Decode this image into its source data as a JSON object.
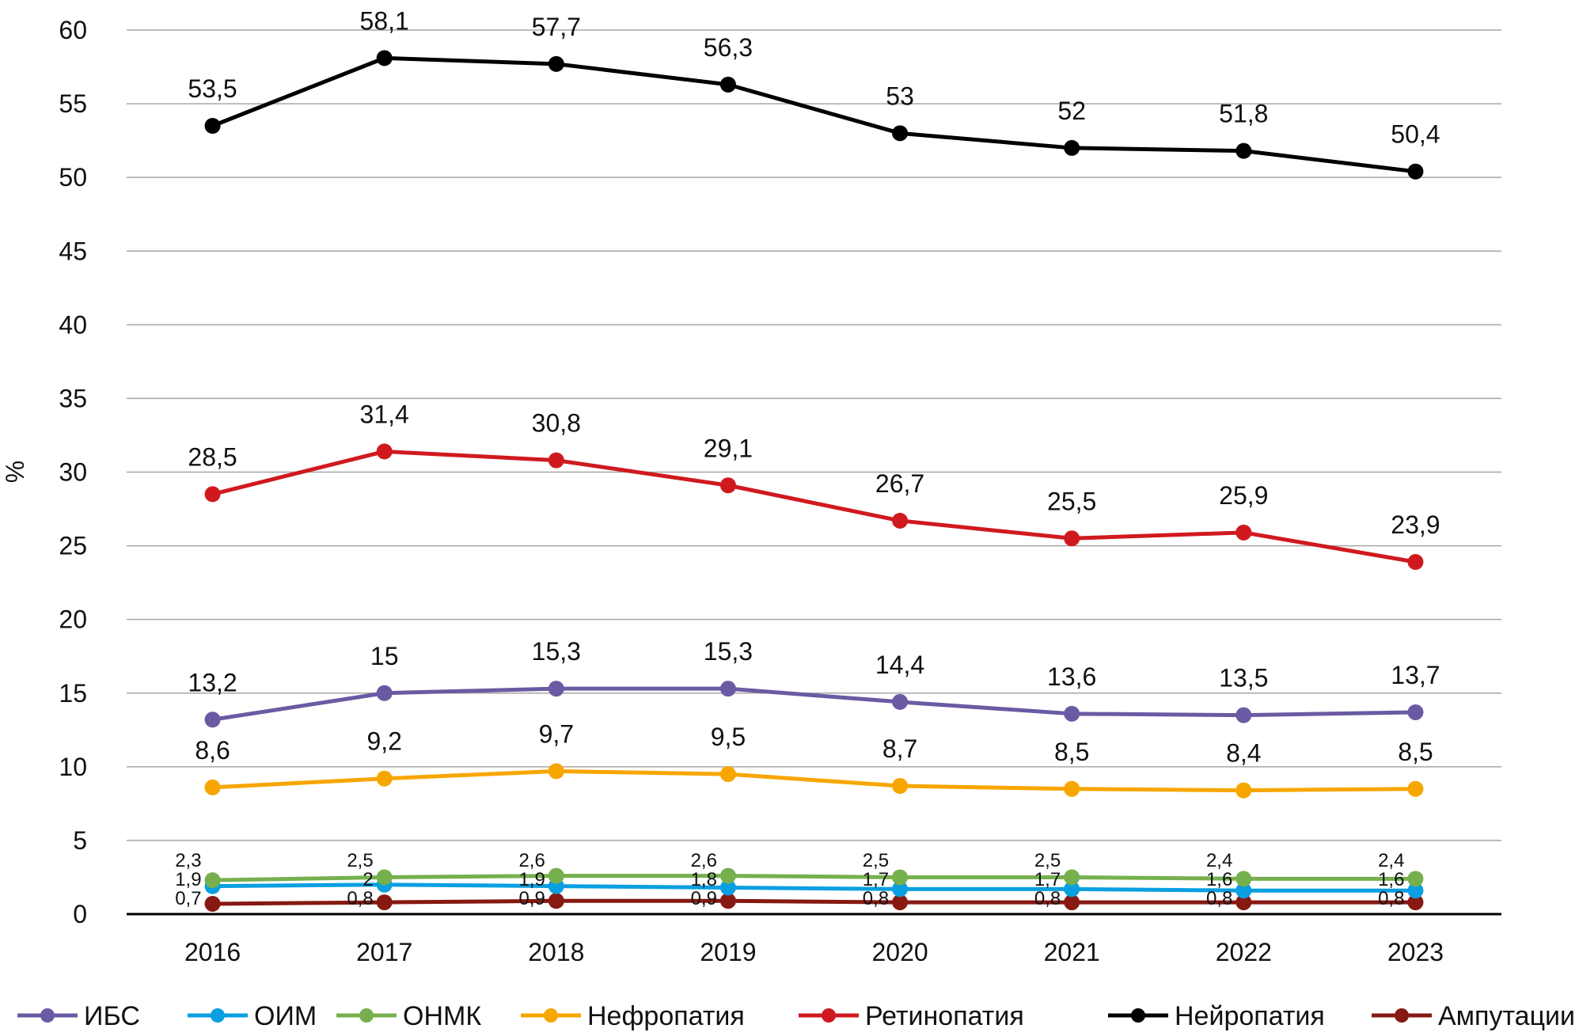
{
  "chart_data": {
    "type": "line",
    "title": "",
    "xlabel": "",
    "ylabel": "%",
    "ylim": [
      0,
      60
    ],
    "yticks": [
      0,
      5,
      10,
      15,
      20,
      25,
      30,
      35,
      40,
      45,
      50,
      55,
      60
    ],
    "grid": "horizontal",
    "legend_position": "bottom",
    "categories": [
      "2016",
      "2017",
      "2018",
      "2019",
      "2020",
      "2021",
      "2022",
      "2023"
    ],
    "series": [
      {
        "name": "ИБС",
        "color": "#6b5aa3",
        "values": [
          13.2,
          15,
          15.3,
          15.3,
          14.4,
          13.6,
          13.5,
          13.7
        ],
        "labels": [
          "13,2",
          "15",
          "15,3",
          "15,3",
          "14,4",
          "13,6",
          "13,5",
          "13,7"
        ]
      },
      {
        "name": "ОИМ",
        "color": "#0a9fe0",
        "values": [
          1.9,
          2,
          1.9,
          1.8,
          1.7,
          1.7,
          1.6,
          1.6
        ],
        "labels": [
          "1,9",
          "2",
          "1,9",
          "1,8",
          "1,7",
          "1,7",
          "1,6",
          "1,6"
        ]
      },
      {
        "name": "ОНМК",
        "color": "#76b04e",
        "values": [
          2.3,
          2.5,
          2.6,
          2.6,
          2.5,
          2.5,
          2.4,
          2.4
        ],
        "labels": [
          "2,3",
          "2,5",
          "2,6",
          "2,6",
          "2,5",
          "2,5",
          "2,4",
          "2,4"
        ]
      },
      {
        "name": "Нефропатия",
        "color": "#f7a600",
        "values": [
          8.6,
          9.2,
          9.7,
          9.5,
          8.7,
          8.5,
          8.4,
          8.5
        ],
        "labels": [
          "8,6",
          "9,2",
          "9,7",
          "9,5",
          "8,7",
          "8,5",
          "8,4",
          "8,5"
        ]
      },
      {
        "name": "Ретинопатия",
        "color": "#d0191e",
        "values": [
          28.5,
          31.4,
          30.8,
          29.1,
          26.7,
          25.5,
          25.9,
          23.9
        ],
        "labels": [
          "28,5",
          "31,4",
          "30,8",
          "29,1",
          "26,7",
          "25,5",
          "25,9",
          "23,9"
        ]
      },
      {
        "name": "Нейропатия",
        "color": "#000000",
        "values": [
          53.5,
          58.1,
          57.7,
          56.3,
          53,
          52,
          51.8,
          50.4
        ],
        "labels": [
          "53,5",
          "58,1",
          "57,7",
          "56,3",
          "53",
          "52",
          "51,8",
          "50,4"
        ]
      },
      {
        "name": "Ампутации",
        "color": "#861912",
        "values": [
          0.7,
          0.8,
          0.9,
          0.9,
          0.8,
          0.8,
          0.8,
          0.8
        ],
        "labels": [
          "0,7",
          "0,8",
          "0,9",
          "0,9",
          "0,8",
          "0,8",
          "0,8",
          "0,8"
        ]
      }
    ],
    "label_placement": {
      "ИБС": "above",
      "Нефропатия": "above",
      "Ретинопатия": "above",
      "Нейропатия": "above",
      "ОНМК": "left-stack-top",
      "ОИМ": "left-stack-middle",
      "Ампутации": "left-stack-bottom"
    }
  }
}
